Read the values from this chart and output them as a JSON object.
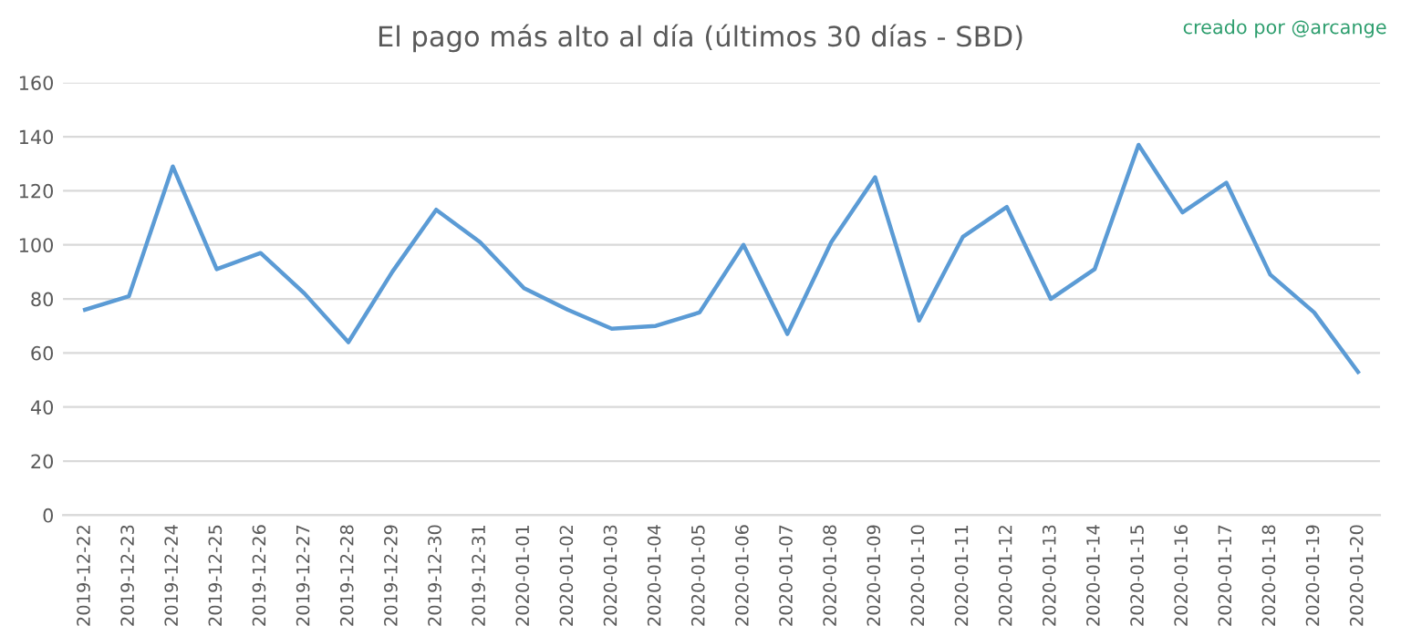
{
  "chart_data": {
    "type": "line",
    "title": "El pago más alto al día (últimos 30 días - SBD)",
    "annotations": [
      "creado por @arcange"
    ],
    "categories": [
      "2019-12-22",
      "2019-12-23",
      "2019-12-24",
      "2019-12-25",
      "2019-12-26",
      "2019-12-27",
      "2019-12-28",
      "2019-12-29",
      "2019-12-30",
      "2019-12-31",
      "2020-01-01",
      "2020-01-02",
      "2020-01-03",
      "2020-01-04",
      "2020-01-05",
      "2020-01-06",
      "2020-01-07",
      "2020-01-08",
      "2020-01-09",
      "2020-01-10",
      "2020-01-11",
      "2020-01-12",
      "2020-01-13",
      "2020-01-14",
      "2020-01-15",
      "2020-01-16",
      "2020-01-17",
      "2020-01-18",
      "2020-01-19",
      "2020-01-20"
    ],
    "series": [
      {
        "color": "#5b9bd5",
        "values": [
          76,
          81,
          129,
          91,
          97,
          82,
          64,
          90,
          113,
          101,
          84,
          76,
          69,
          70,
          75,
          100,
          67,
          101,
          125,
          72,
          103,
          114,
          80,
          91,
          137,
          112,
          123,
          89,
          75,
          53
        ]
      }
    ],
    "ylim": [
      0,
      160
    ],
    "yticks": [
      0,
      20,
      40,
      60,
      80,
      100,
      120,
      140,
      160
    ],
    "grid": "y",
    "legend": false
  }
}
